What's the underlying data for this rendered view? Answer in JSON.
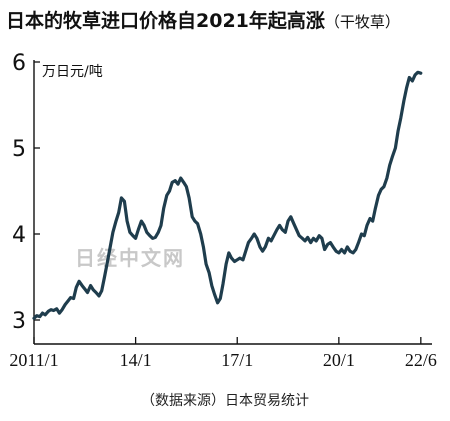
{
  "title": "日本的牧草进口价格自2021年起高涨",
  "subtitle": "（干牧草）",
  "source_note": "（数据来源）日本贸易统计",
  "watermark": "日经中文网",
  "colors": {
    "line": "#1f3d4d",
    "axis": "#111111",
    "watermark": "#c8c8c8"
  },
  "chart_data": {
    "type": "line",
    "title": "日本的牧草进口价格自2021年起高涨",
    "subtitle": "（干牧草）",
    "unit_label": "万日元/吨",
    "y_ticks": [
      3,
      4,
      5,
      6
    ],
    "ylim": [
      2.75,
      6.2
    ],
    "xlim": [
      2011.0,
      2022.75
    ],
    "x_ticks": [
      {
        "value": 2011.0,
        "label": "2011/1"
      },
      {
        "value": 2014.0,
        "label": "14/1"
      },
      {
        "value": 2017.0,
        "label": "17/1"
      },
      {
        "value": 2020.0,
        "label": "20/1"
      },
      {
        "value": 2022.42,
        "label": "22/6"
      }
    ],
    "grid": false,
    "series": [
      {
        "points": [
          [
            2011.0,
            3.02
          ],
          [
            2011.08,
            3.05
          ],
          [
            2011.17,
            3.04
          ],
          [
            2011.25,
            3.08
          ],
          [
            2011.33,
            3.06
          ],
          [
            2011.42,
            3.1
          ],
          [
            2011.5,
            3.12
          ],
          [
            2011.58,
            3.11
          ],
          [
            2011.67,
            3.13
          ],
          [
            2011.75,
            3.08
          ],
          [
            2011.83,
            3.12
          ],
          [
            2011.92,
            3.18
          ],
          [
            2012.0,
            3.22
          ],
          [
            2012.08,
            3.26
          ],
          [
            2012.17,
            3.25
          ],
          [
            2012.25,
            3.38
          ],
          [
            2012.33,
            3.45
          ],
          [
            2012.42,
            3.4
          ],
          [
            2012.5,
            3.36
          ],
          [
            2012.58,
            3.32
          ],
          [
            2012.67,
            3.4
          ],
          [
            2012.75,
            3.35
          ],
          [
            2012.83,
            3.32
          ],
          [
            2012.92,
            3.28
          ],
          [
            2013.0,
            3.34
          ],
          [
            2013.08,
            3.5
          ],
          [
            2013.17,
            3.68
          ],
          [
            2013.25,
            3.85
          ],
          [
            2013.33,
            4.02
          ],
          [
            2013.42,
            4.15
          ],
          [
            2013.5,
            4.25
          ],
          [
            2013.58,
            4.42
          ],
          [
            2013.67,
            4.38
          ],
          [
            2013.75,
            4.15
          ],
          [
            2013.83,
            4.02
          ],
          [
            2013.92,
            3.98
          ],
          [
            2014.0,
            3.95
          ],
          [
            2014.08,
            4.05
          ],
          [
            2014.17,
            4.15
          ],
          [
            2014.25,
            4.1
          ],
          [
            2014.33,
            4.02
          ],
          [
            2014.42,
            3.98
          ],
          [
            2014.5,
            3.95
          ],
          [
            2014.58,
            3.96
          ],
          [
            2014.67,
            4.02
          ],
          [
            2014.75,
            4.1
          ],
          [
            2014.83,
            4.3
          ],
          [
            2014.92,
            4.45
          ],
          [
            2015.0,
            4.5
          ],
          [
            2015.08,
            4.6
          ],
          [
            2015.17,
            4.62
          ],
          [
            2015.25,
            4.58
          ],
          [
            2015.33,
            4.65
          ],
          [
            2015.42,
            4.6
          ],
          [
            2015.5,
            4.55
          ],
          [
            2015.58,
            4.42
          ],
          [
            2015.67,
            4.2
          ],
          [
            2015.75,
            4.15
          ],
          [
            2015.83,
            4.12
          ],
          [
            2015.92,
            4.0
          ],
          [
            2016.0,
            3.85
          ],
          [
            2016.08,
            3.65
          ],
          [
            2016.17,
            3.55
          ],
          [
            2016.25,
            3.4
          ],
          [
            2016.33,
            3.3
          ],
          [
            2016.42,
            3.2
          ],
          [
            2016.5,
            3.25
          ],
          [
            2016.58,
            3.42
          ],
          [
            2016.67,
            3.65
          ],
          [
            2016.75,
            3.78
          ],
          [
            2016.83,
            3.72
          ],
          [
            2016.92,
            3.68
          ],
          [
            2017.0,
            3.7
          ],
          [
            2017.08,
            3.72
          ],
          [
            2017.17,
            3.7
          ],
          [
            2017.25,
            3.8
          ],
          [
            2017.33,
            3.9
          ],
          [
            2017.42,
            3.95
          ],
          [
            2017.5,
            4.0
          ],
          [
            2017.58,
            3.95
          ],
          [
            2017.67,
            3.85
          ],
          [
            2017.75,
            3.8
          ],
          [
            2017.83,
            3.85
          ],
          [
            2017.92,
            3.95
          ],
          [
            2018.0,
            3.92
          ],
          [
            2018.08,
            3.98
          ],
          [
            2018.17,
            4.05
          ],
          [
            2018.25,
            4.1
          ],
          [
            2018.33,
            4.05
          ],
          [
            2018.42,
            4.02
          ],
          [
            2018.5,
            4.15
          ],
          [
            2018.58,
            4.2
          ],
          [
            2018.67,
            4.12
          ],
          [
            2018.75,
            4.05
          ],
          [
            2018.83,
            3.98
          ],
          [
            2018.92,
            3.95
          ],
          [
            2019.0,
            3.92
          ],
          [
            2019.08,
            3.96
          ],
          [
            2019.17,
            3.9
          ],
          [
            2019.25,
            3.95
          ],
          [
            2019.33,
            3.92
          ],
          [
            2019.42,
            3.98
          ],
          [
            2019.5,
            3.95
          ],
          [
            2019.58,
            3.82
          ],
          [
            2019.67,
            3.88
          ],
          [
            2019.75,
            3.9
          ],
          [
            2019.83,
            3.85
          ],
          [
            2019.92,
            3.8
          ],
          [
            2020.0,
            3.78
          ],
          [
            2020.08,
            3.82
          ],
          [
            2020.17,
            3.78
          ],
          [
            2020.25,
            3.85
          ],
          [
            2020.33,
            3.8
          ],
          [
            2020.42,
            3.78
          ],
          [
            2020.5,
            3.82
          ],
          [
            2020.58,
            3.9
          ],
          [
            2020.67,
            4.0
          ],
          [
            2020.75,
            3.98
          ],
          [
            2020.83,
            4.1
          ],
          [
            2020.92,
            4.18
          ],
          [
            2021.0,
            4.15
          ],
          [
            2021.08,
            4.3
          ],
          [
            2021.17,
            4.45
          ],
          [
            2021.25,
            4.52
          ],
          [
            2021.33,
            4.55
          ],
          [
            2021.42,
            4.65
          ],
          [
            2021.5,
            4.8
          ],
          [
            2021.58,
            4.9
          ],
          [
            2021.67,
            5.0
          ],
          [
            2021.75,
            5.2
          ],
          [
            2021.83,
            5.35
          ],
          [
            2021.92,
            5.55
          ],
          [
            2022.0,
            5.7
          ],
          [
            2022.08,
            5.82
          ],
          [
            2022.17,
            5.78
          ],
          [
            2022.25,
            5.85
          ],
          [
            2022.33,
            5.88
          ],
          [
            2022.42,
            5.87
          ]
        ]
      }
    ]
  }
}
